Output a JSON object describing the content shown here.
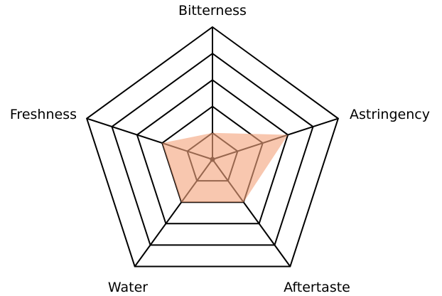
{
  "chart_data": {
    "type": "radar",
    "title": "",
    "categories": [
      "Bitterness",
      "Astringency",
      "Aftertaste",
      "Water",
      "Freshness"
    ],
    "series": [
      {
        "values": [
          1,
          3,
          2,
          2,
          2
        ],
        "color": "#F4A57E"
      }
    ],
    "rlim": [
      0,
      5
    ],
    "rings": 5,
    "grid": true,
    "grid_color": "#000000"
  }
}
